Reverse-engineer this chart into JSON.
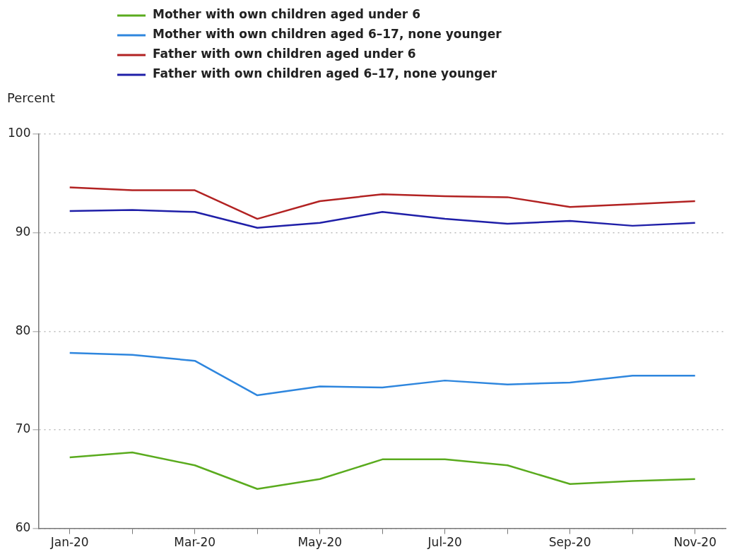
{
  "chart_data": {
    "type": "line",
    "ylabel": "Percent",
    "categories": [
      "Jan-20",
      null,
      "Mar-20",
      null,
      "May-20",
      null,
      "Jul-20",
      null,
      "Sep-20",
      null,
      "Nov-20"
    ],
    "series": [
      {
        "name": "Mother with own children aged under 6",
        "color": "#5aab1e",
        "values": [
          67.2,
          67.7,
          66.4,
          64.0,
          65.0,
          67.0,
          67.0,
          66.4,
          64.5,
          64.8,
          65.0
        ]
      },
      {
        "name": "Mother with own children aged 6–17, none younger",
        "color": "#2e86de",
        "values": [
          77.8,
          77.6,
          77.0,
          73.5,
          74.4,
          74.3,
          75.0,
          74.6,
          74.8,
          75.5,
          75.5
        ]
      },
      {
        "name": "Father with own children aged under 6",
        "color": "#b22222",
        "values": [
          94.6,
          94.3,
          94.3,
          91.4,
          93.2,
          93.9,
          93.7,
          93.6,
          92.6,
          92.9,
          93.2
        ]
      },
      {
        "name": "Father with own children aged 6–17, none younger",
        "color": "#1f1fa8",
        "values": [
          92.2,
          92.3,
          92.1,
          90.5,
          91.0,
          92.1,
          91.4,
          90.9,
          91.2,
          90.7,
          91.0
        ]
      }
    ],
    "ylim": [
      60,
      100
    ],
    "yticks": [
      60,
      70,
      80,
      90,
      100
    ],
    "grid": "y",
    "legend": "top",
    "marker": "none",
    "line_style": "solid"
  }
}
